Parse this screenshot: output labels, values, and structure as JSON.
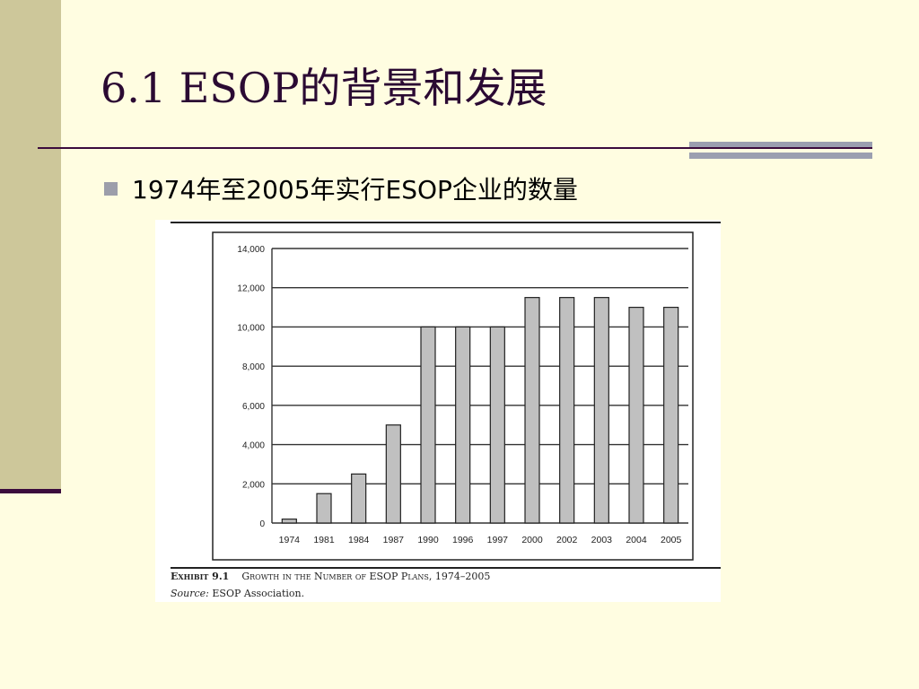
{
  "slide": {
    "title": "6.1 ESOP的背景和发展",
    "bullet": "1974年至2005年实行ESOP企业的数量"
  },
  "figure": {
    "caption_prefix": "Exhibit 9.1",
    "caption_text": "Growth in the Number of ESOP Plans, 1974–2005",
    "source_label": "Source:",
    "source_text": "ESOP Association."
  },
  "colors": {
    "background": "#fffde1",
    "left_bar": "#cdc79a",
    "accent_line": "#3b0b3d",
    "bar_fill": "#c0c0c0"
  },
  "chart_data": {
    "type": "bar",
    "categories": [
      "1974",
      "1981",
      "1984",
      "1987",
      "1990",
      "1996",
      "1997",
      "2000",
      "2002",
      "2003",
      "2004",
      "2005"
    ],
    "values": [
      200,
      1500,
      2500,
      5000,
      10000,
      10000,
      10000,
      11500,
      11500,
      11500,
      11000,
      11000
    ],
    "yticks": [
      "0",
      "2,000",
      "4,000",
      "6,000",
      "8,000",
      "10,000",
      "12,000",
      "14,000"
    ],
    "ylim": [
      0,
      14000
    ],
    "grid": true
  }
}
